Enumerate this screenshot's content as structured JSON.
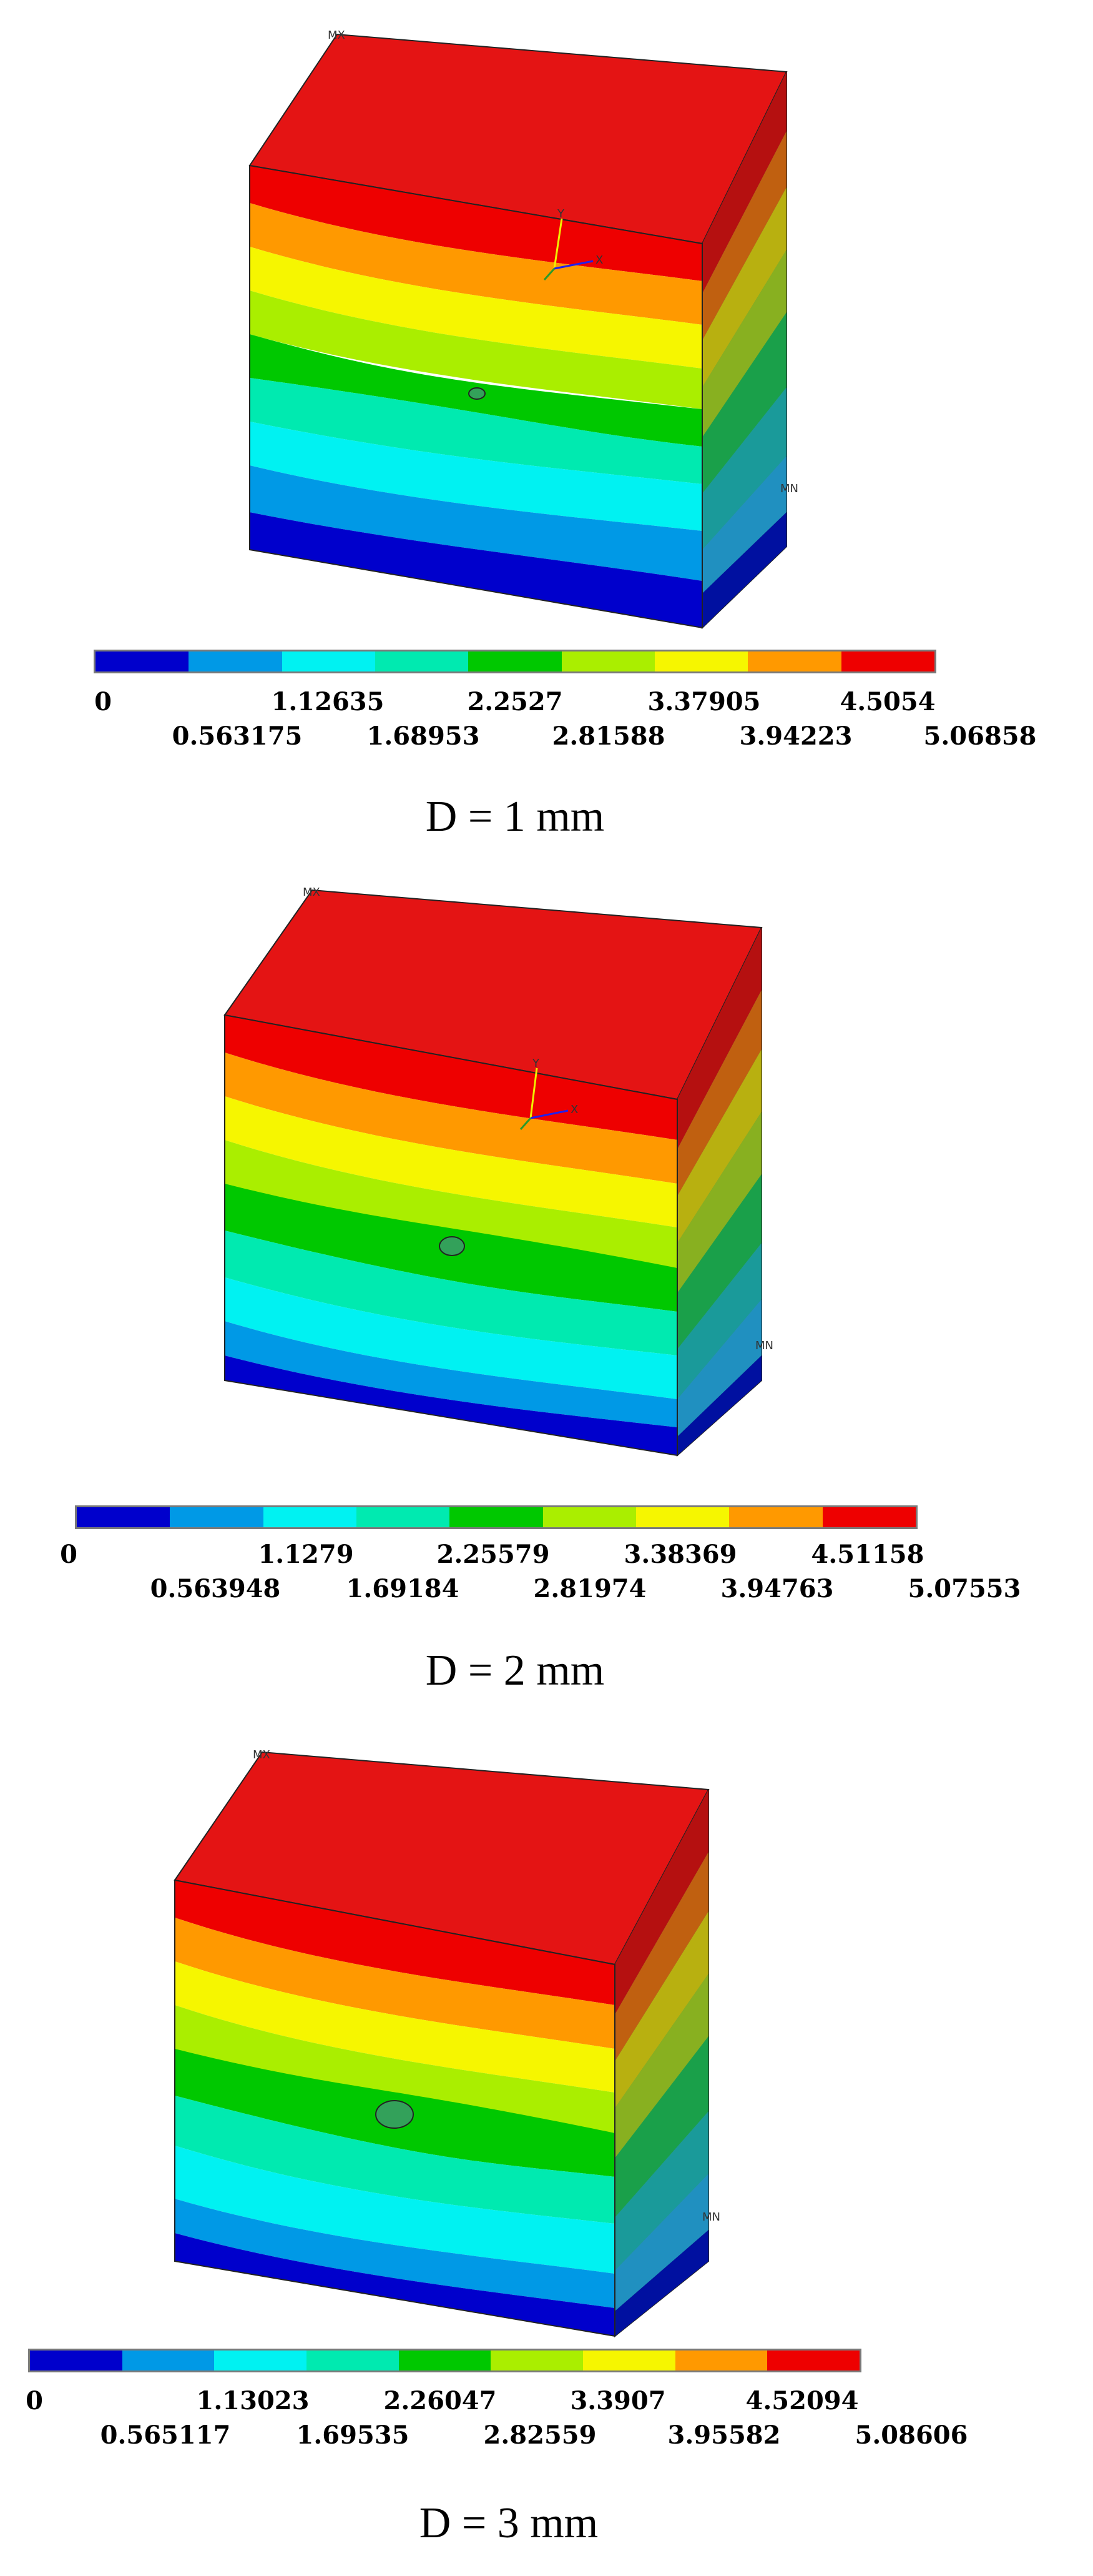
{
  "palette": [
    "#0000cc",
    "#0099e6",
    "#00f2f2",
    "#00eab0",
    "#00c800",
    "#aaee00",
    "#f6f600",
    "#ff9900",
    "#ee0000"
  ],
  "panels": [
    {
      "caption": "D = 1 mm",
      "legend_row1": [
        "0",
        "1.12635",
        "2.2527",
        "3.37905",
        "4.5054"
      ],
      "legend_row2": [
        "0.563175",
        "1.68953",
        "2.81588",
        "3.94223",
        "5.06858"
      ],
      "max_tag": "MX",
      "min_tag": "MN",
      "axis_x": "X",
      "axis_y": "Y"
    },
    {
      "caption": "D = 2 mm",
      "legend_row1": [
        "0",
        "1.1279",
        "2.25579",
        "3.38369",
        "4.51158"
      ],
      "legend_row2": [
        "0.563948",
        "1.69184",
        "2.81974",
        "3.94763",
        "5.07553"
      ],
      "max_tag": "MX",
      "min_tag": "MN",
      "axis_x": "X",
      "axis_y": "Y"
    },
    {
      "caption": "D = 3 mm",
      "legend_row1": [
        "0",
        "1.13023",
        "2.26047",
        "3.3907",
        "4.52094"
      ],
      "legend_row2": [
        "0.565117",
        "1.69535",
        "2.82559",
        "3.95582",
        "5.08606"
      ],
      "max_tag": "MX",
      "min_tag": "MN"
    }
  ]
}
